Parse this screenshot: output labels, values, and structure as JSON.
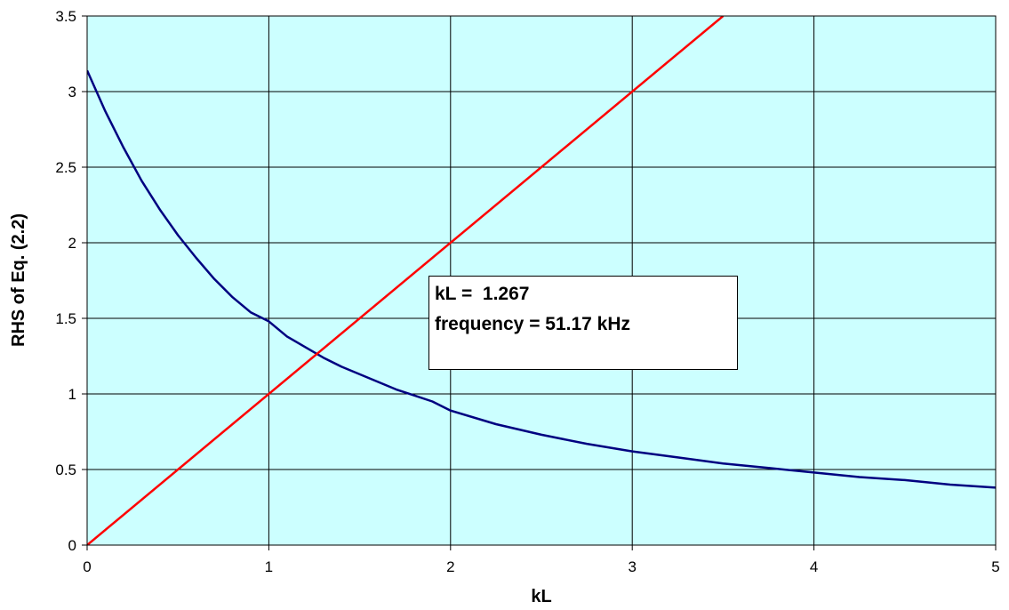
{
  "chart_data": {
    "type": "line",
    "title": "",
    "xlabel": "kL",
    "ylabel": "RHS of Eq. (2.2)",
    "xlim": [
      0,
      5
    ],
    "ylim": [
      0,
      3.5
    ],
    "x_ticks": [
      "0",
      "1",
      "2",
      "3",
      "4",
      "5"
    ],
    "y_ticks": [
      "0",
      "0.5",
      "1",
      "1.5",
      "2",
      "2.5",
      "3",
      "3.5"
    ],
    "grid": true,
    "legend": "none",
    "plot_background": "#ccffff",
    "series": [
      {
        "color": "#000080",
        "x": [
          0,
          0.1,
          0.2,
          0.3,
          0.4,
          0.5,
          0.6,
          0.7,
          0.8,
          0.9,
          1.0,
          1.1,
          1.2,
          1.3,
          1.4,
          1.5,
          1.6,
          1.7,
          1.8,
          1.9,
          2.0,
          2.25,
          2.5,
          2.75,
          3.0,
          3.25,
          3.5,
          3.75,
          4.0,
          4.25,
          4.5,
          4.75,
          5.0
        ],
        "y": [
          3.14,
          2.87,
          2.63,
          2.41,
          2.22,
          2.05,
          1.9,
          1.76,
          1.64,
          1.54,
          1.48,
          1.38,
          1.31,
          1.24,
          1.18,
          1.13,
          1.08,
          1.03,
          0.99,
          0.95,
          0.89,
          0.8,
          0.73,
          0.67,
          0.62,
          0.58,
          0.54,
          0.51,
          0.48,
          0.45,
          0.43,
          0.4,
          0.38
        ]
      },
      {
        "color": "#ff0000",
        "x": [
          0,
          3.5
        ],
        "y": [
          0,
          3.5
        ]
      }
    ],
    "annotation": {
      "line1": "kL =  1.267",
      "line2": "frequency = 51.17 kHz"
    }
  }
}
